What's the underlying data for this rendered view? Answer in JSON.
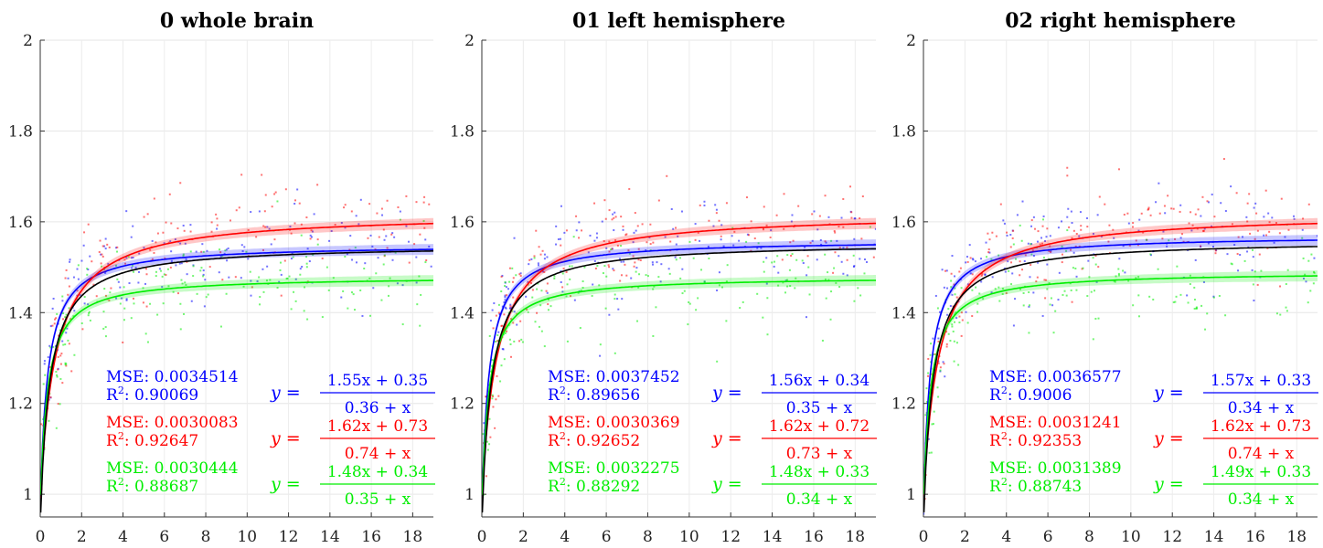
{
  "chart_data": [
    {
      "type": "scatter",
      "title": "0 whole brain",
      "xlim": [
        0,
        19
      ],
      "ylim": [
        0.95,
        2
      ],
      "xticks": [
        "0",
        "2",
        "4",
        "6",
        "8",
        "10",
        "12",
        "14",
        "16",
        "18"
      ],
      "yticks": [
        "1",
        "1.2",
        "1.4",
        "1.6",
        "1.8",
        "2"
      ],
      "grid": true,
      "series": [
        {
          "color": "#0000ff",
          "a": 1.55,
          "b": 0.35,
          "c": 0.36,
          "mse": "MSE: 0.0034514",
          "r2_label": "R",
          "r2_value": ": 0.90069",
          "eq_num": "1.55x + 0.35",
          "eq_den": "0.36 + x"
        },
        {
          "color": "#ff0000",
          "a": 1.62,
          "b": 0.73,
          "c": 0.74,
          "mse": "MSE: 0.0030083",
          "r2_label": "R",
          "r2_value": ": 0.92647",
          "eq_num": "1.62x + 0.73",
          "eq_den": "0.74 + x"
        },
        {
          "color": "#00ee00",
          "a": 1.48,
          "b": 0.34,
          "c": 0.35,
          "mse": "MSE: 0.0030444",
          "r2_label": "R",
          "r2_value": ": 0.88687",
          "eq_num": "1.48x + 0.34",
          "eq_den": "0.35 + x"
        }
      ],
      "black_fit": {
        "a": 1.55,
        "b": 0.42,
        "c": 0.45
      }
    },
    {
      "type": "scatter",
      "title": "01 left hemisphere",
      "xlim": [
        0,
        19
      ],
      "ylim": [
        0.95,
        2
      ],
      "xticks": [
        "0",
        "2",
        "4",
        "6",
        "8",
        "10",
        "12",
        "14",
        "16",
        "18"
      ],
      "yticks": [
        "1",
        "1.2",
        "1.4",
        "1.6",
        "1.8",
        "2"
      ],
      "grid": true,
      "series": [
        {
          "color": "#0000ff",
          "a": 1.56,
          "b": 0.34,
          "c": 0.35,
          "mse": "MSE: 0.0037452",
          "r2_label": "R",
          "r2_value": ": 0.89656",
          "eq_num": "1.56x + 0.34",
          "eq_den": "0.35 + x"
        },
        {
          "color": "#ff0000",
          "a": 1.62,
          "b": 0.72,
          "c": 0.73,
          "mse": "MSE: 0.0030369",
          "r2_label": "R",
          "r2_value": ": 0.92652",
          "eq_num": "1.62x + 0.72",
          "eq_den": "0.73 + x"
        },
        {
          "color": "#00ee00",
          "a": 1.48,
          "b": 0.33,
          "c": 0.34,
          "mse": "MSE: 0.0032275",
          "r2_label": "R",
          "r2_value": ": 0.88292",
          "eq_num": "1.48x + 0.33",
          "eq_den": "0.34 + x"
        }
      ],
      "black_fit": {
        "a": 1.555,
        "b": 0.42,
        "c": 0.45
      }
    },
    {
      "type": "scatter",
      "title": "02 right hemisphere",
      "xlim": [
        0,
        19
      ],
      "ylim": [
        0.95,
        2
      ],
      "xticks": [
        "0",
        "2",
        "4",
        "6",
        "8",
        "10",
        "12",
        "14",
        "16",
        "18"
      ],
      "yticks": [
        "1",
        "1.2",
        "1.4",
        "1.6",
        "1.8",
        "2"
      ],
      "grid": true,
      "series": [
        {
          "color": "#0000ff",
          "a": 1.57,
          "b": 0.33,
          "c": 0.34,
          "mse": "MSE: 0.0036577",
          "r2_label": "R",
          "r2_value": ": 0.9006",
          "eq_num": "1.57x + 0.33",
          "eq_den": "0.34 + x"
        },
        {
          "color": "#ff0000",
          "a": 1.62,
          "b": 0.73,
          "c": 0.74,
          "mse": "MSE: 0.0031241",
          "r2_label": "R",
          "r2_value": ": 0.92353",
          "eq_num": "1.62x + 0.73",
          "eq_den": "0.74 + x"
        },
        {
          "color": "#00ee00",
          "a": 1.49,
          "b": 0.33,
          "c": 0.34,
          "mse": "MSE: 0.0031389",
          "r2_label": "R",
          "r2_value": ": 0.88743",
          "eq_num": "1.49x + 0.33",
          "eq_den": "0.34 + x"
        }
      ],
      "black_fit": {
        "a": 1.56,
        "b": 0.42,
        "c": 0.45
      }
    }
  ]
}
